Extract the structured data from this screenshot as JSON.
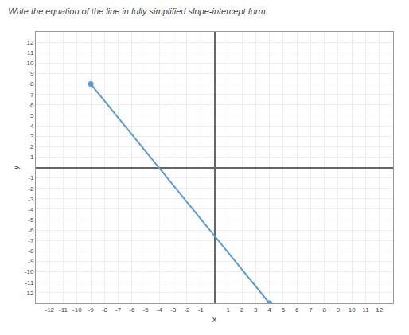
{
  "chart_data": {
    "type": "line",
    "title": "Write the equation of the line in fully simplified slope-intercept form.",
    "xlabel": "x",
    "ylabel": "y",
    "x": [
      -9,
      4
    ],
    "values": [
      8,
      -13
    ],
    "color": "#5b9bd5",
    "marker": "circle",
    "xlim": [
      -13,
      13
    ],
    "ylim": [
      -13,
      13
    ],
    "xticks": [
      -12,
      -11,
      -10,
      -9,
      -8,
      -7,
      -6,
      -5,
      -4,
      -3,
      -2,
      -1,
      1,
      2,
      3,
      4,
      5,
      6,
      7,
      8,
      9,
      10,
      11,
      12
    ],
    "yticks": [
      -12,
      -11,
      -10,
      -9,
      -8,
      -7,
      -6,
      -5,
      -4,
      -3,
      -2,
      -1,
      1,
      2,
      3,
      4,
      5,
      6,
      7,
      8,
      9,
      10,
      11,
      12
    ],
    "grid": true
  }
}
